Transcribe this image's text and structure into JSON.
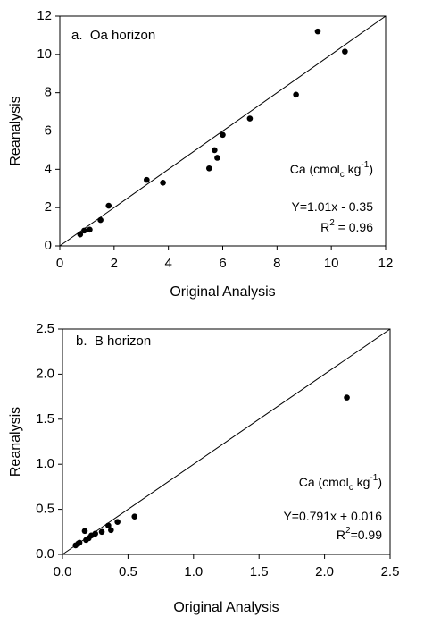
{
  "chart_data": [
    {
      "type": "scatter",
      "title": "a.  Oa horizon",
      "x_label": "Original Analysis",
      "y_label": "Reanalysis",
      "x": [
        0.75,
        0.9,
        1.1,
        1.5,
        1.8,
        3.2,
        3.8,
        5.5,
        5.7,
        5.8,
        6.0,
        7.0,
        8.7,
        9.5,
        10.5
      ],
      "values": [
        0.6,
        0.8,
        0.85,
        1.35,
        2.1,
        3.45,
        3.3,
        4.05,
        5.0,
        4.6,
        5.8,
        6.65,
        7.9,
        11.2,
        10.15
      ],
      "color": "#000000",
      "xlim": [
        0,
        12
      ],
      "ylim": [
        0,
        12
      ],
      "xticks": [
        0,
        2,
        4,
        6,
        8,
        10,
        12
      ],
      "yticks": [
        0,
        2,
        4,
        6,
        8,
        10,
        12
      ],
      "annotations": [
        [
          {
            "text": "Ca "
          },
          {
            "text": "(cmol"
          },
          {
            "text": "c",
            "script": "sub"
          },
          {
            "text": " kg"
          },
          {
            "text": "-1",
            "script": "super"
          },
          {
            "text": ")"
          }
        ],
        [
          {
            "text": "Y=1.01x - 0.35"
          }
        ],
        [
          {
            "text": "R"
          },
          {
            "text": "2",
            "script": "super"
          },
          {
            "text": " = 0.96"
          }
        ]
      ]
    },
    {
      "type": "scatter",
      "title": "b.  B horizon",
      "x_label": "Original Analysis",
      "y_label": "Reanalysis",
      "x": [
        0.1,
        0.12,
        0.13,
        0.17,
        0.18,
        0.2,
        0.22,
        0.25,
        0.3,
        0.35,
        0.37,
        0.42,
        0.55,
        2.17
      ],
      "values": [
        0.1,
        0.12,
        0.13,
        0.26,
        0.16,
        0.18,
        0.21,
        0.23,
        0.25,
        0.32,
        0.27,
        0.36,
        0.42,
        1.74
      ],
      "color": "#000000",
      "xlim": [
        0,
        2.5
      ],
      "ylim": [
        0,
        2.5
      ],
      "xticks": [
        {
          "value": 0,
          "label": "0.0"
        },
        0.5,
        {
          "value": 1,
          "label": "1.0"
        },
        1.5,
        {
          "value": 2,
          "label": "2.0"
        },
        2.5
      ],
      "yticks": [
        {
          "value": 0,
          "label": "0.0"
        },
        0.5,
        {
          "value": 1,
          "label": "1.0"
        },
        1.5,
        {
          "value": 2,
          "label": "2.0"
        },
        2.5
      ],
      "annotations": [
        [
          {
            "text": "Ca "
          },
          {
            "text": "(cmol"
          },
          {
            "text": "c",
            "script": "sub"
          },
          {
            "text": " kg"
          },
          {
            "text": "-1",
            "script": "super"
          },
          {
            "text": ")"
          }
        ],
        [
          {
            "text": "Y=0.791x + 0.016"
          }
        ],
        [
          {
            "text": "R"
          },
          {
            "text": "2",
            "script": "super"
          },
          {
            "text": "=0.99"
          }
        ]
      ]
    }
  ]
}
